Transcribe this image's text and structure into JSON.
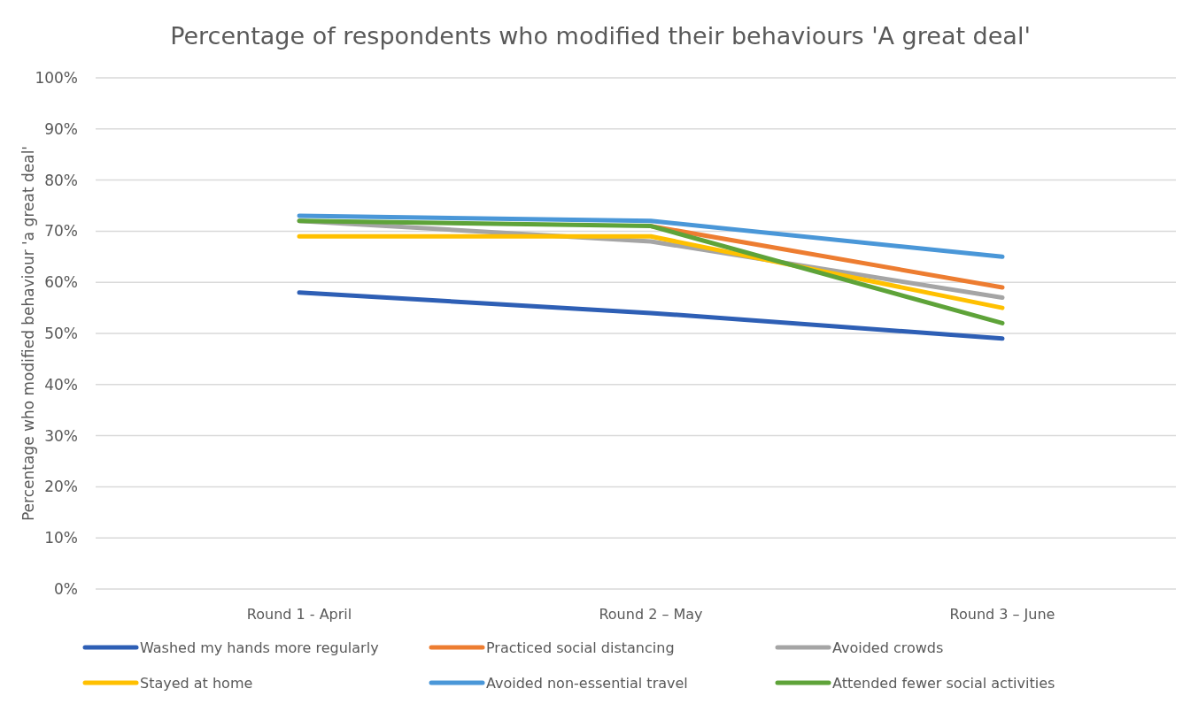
{
  "chart_data": {
    "type": "line",
    "title": "Percentage of respondents who modified their behaviours 'A great deal'",
    "ylabel": "Percentage who modified behaviour 'a great deal'",
    "categories": [
      "Round 1 - April",
      "Round 2 – May",
      "Round 3 – June"
    ],
    "ylim": [
      0,
      100
    ],
    "yticks": [
      {
        "value": 0,
        "label": "0%"
      },
      {
        "value": 10,
        "label": "10%"
      },
      {
        "value": 20,
        "label": "20%"
      },
      {
        "value": 30,
        "label": "30%"
      },
      {
        "value": 40,
        "label": "40%"
      },
      {
        "value": 50,
        "label": "50%"
      },
      {
        "value": 60,
        "label": "60%"
      },
      {
        "value": 70,
        "label": "70%"
      },
      {
        "value": 80,
        "label": "80%"
      },
      {
        "value": 90,
        "label": "90%"
      },
      {
        "value": 100,
        "label": "100%"
      }
    ],
    "grid": "y",
    "legend": "bottom",
    "line_style": "solid",
    "series": [
      {
        "name": "Washed my hands more regularly",
        "color": "#2e5fb5",
        "values": [
          58,
          54,
          49
        ]
      },
      {
        "name": "Practiced social distancing",
        "color": "#ed7d31",
        "values": [
          null,
          71,
          59
        ]
      },
      {
        "name": "Avoided crowds",
        "color": "#a5a5a5",
        "values": [
          72,
          68,
          57
        ]
      },
      {
        "name": "Stayed at home",
        "color": "#ffc000",
        "values": [
          69,
          69,
          55
        ]
      },
      {
        "name": "Avoided non-essential travel",
        "color": "#4a97d8",
        "values": [
          73,
          72,
          65
        ]
      },
      {
        "name": "Attended fewer social activities",
        "color": "#5ea339",
        "values": [
          72,
          71,
          52
        ]
      }
    ]
  }
}
